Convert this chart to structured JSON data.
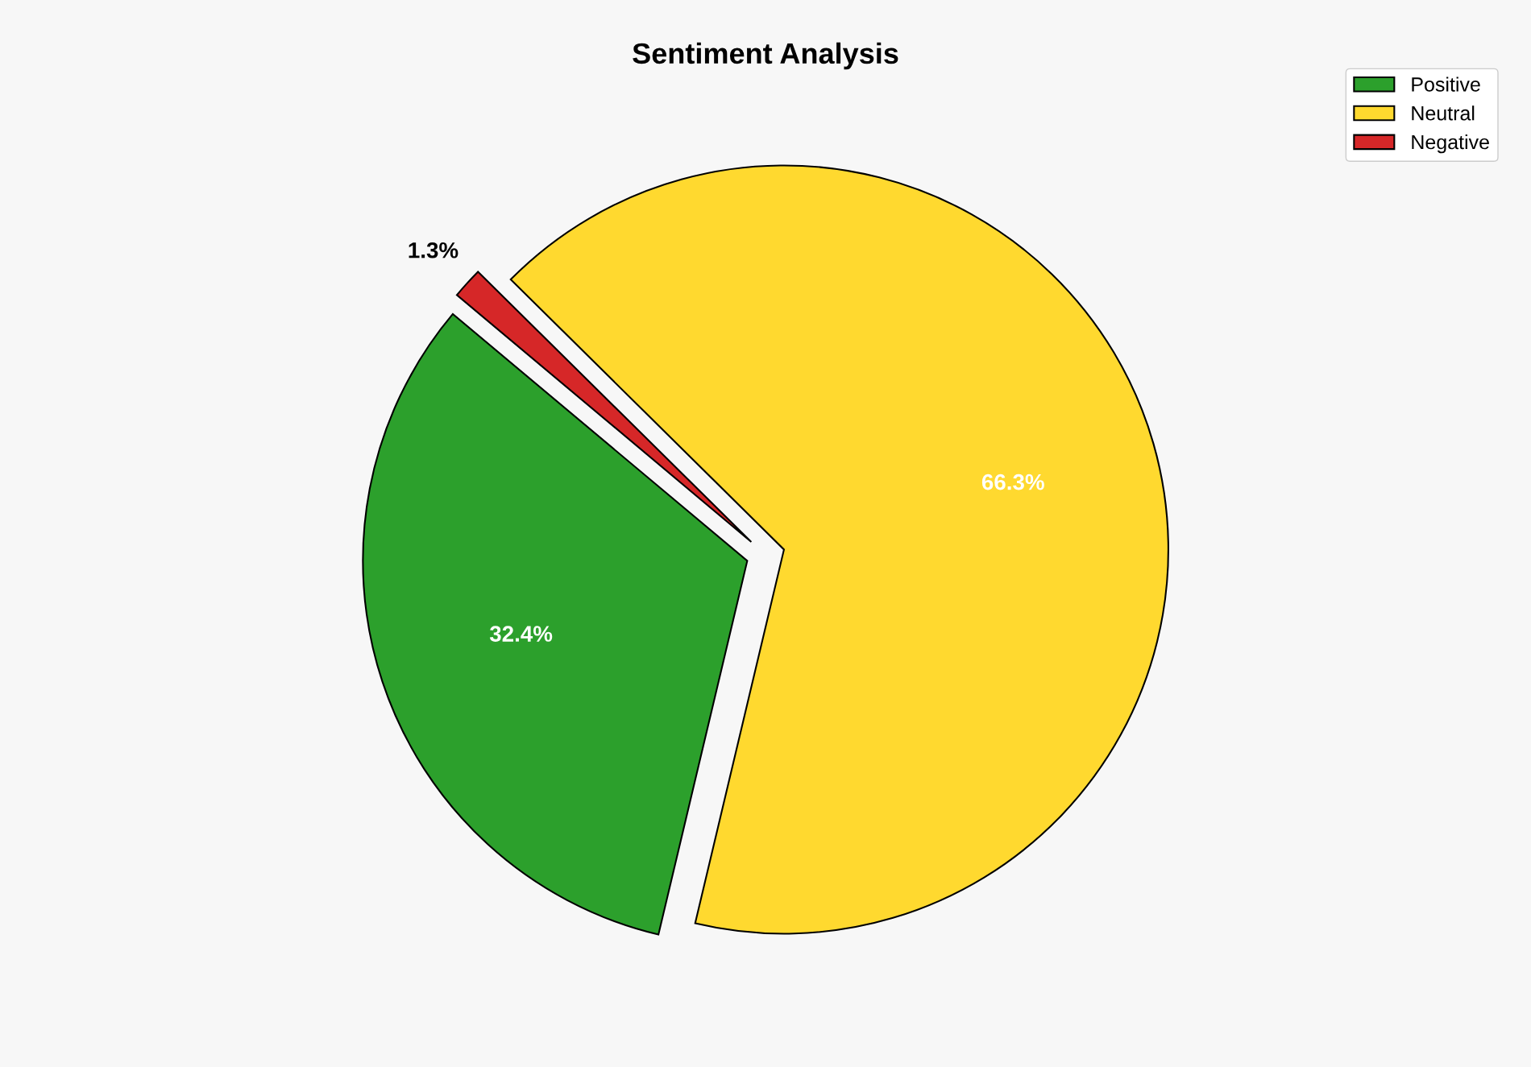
{
  "chart_data": {
    "type": "pie",
    "title": "Sentiment Analysis",
    "categories": [
      "Positive",
      "Neutral",
      "Negative"
    ],
    "values": [
      32.4,
      66.3,
      1.3
    ],
    "value_labels": [
      "32.4%",
      "66.3%",
      "1.3%"
    ],
    "colors": [
      "#2ca02c",
      "#ffd92f",
      "#d62728"
    ],
    "legend": "top right"
  }
}
